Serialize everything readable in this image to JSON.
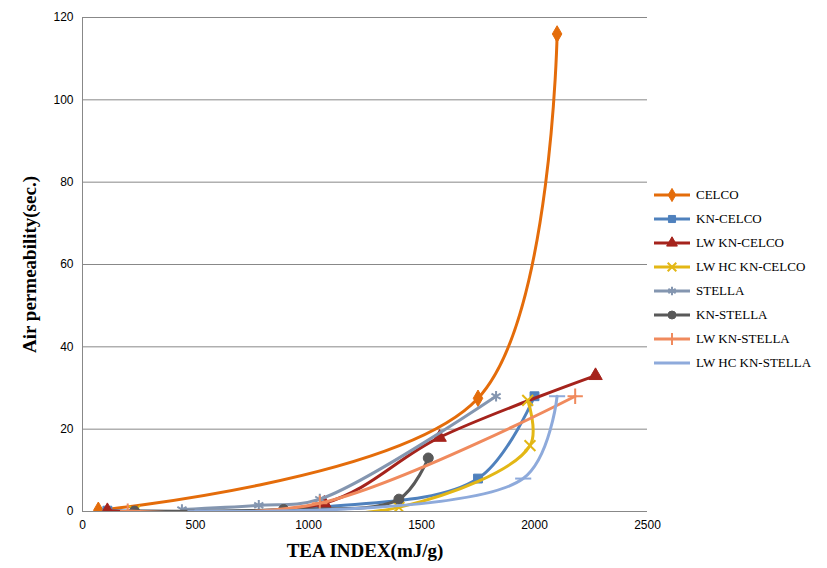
{
  "chart_data": {
    "type": "line",
    "x_label": "TEA INDEX(mJ/g)",
    "y_label": "Air permeability(sec.)",
    "xlim": [
      0,
      2500
    ],
    "xticks": [
      0,
      500,
      1000,
      1500,
      2000,
      2500
    ],
    "ylim": [
      0,
      120
    ],
    "yticks": [
      0,
      20,
      40,
      60,
      80,
      100,
      120
    ],
    "grid": true,
    "legend": "right",
    "series": [
      {
        "name": "CELCO",
        "color": "#e46c0a",
        "marker": "diamond",
        "x": [
          70,
          1750,
          2100
        ],
        "values": [
          0.3,
          27.5,
          116
        ]
      },
      {
        "name": "KN-CELCO",
        "color": "#4f81bd",
        "marker": "square",
        "x": [
          110,
          1050,
          1750,
          2000
        ],
        "values": [
          0.2,
          1,
          8,
          28
        ]
      },
      {
        "name": "LW KN-CELCO",
        "color": "#a5231c",
        "marker": "triangle",
        "x": [
          110,
          1070,
          1580,
          2270
        ],
        "values": [
          0.2,
          2,
          18,
          33
        ]
      },
      {
        "name": "LW HC KN-CELCO",
        "color": "#e3b715",
        "marker": "times",
        "x": [
          230,
          1400,
          1980,
          1970
        ],
        "values": [
          0.1,
          1,
          16,
          27
        ]
      },
      {
        "name": "STELLA",
        "color": "#8496b0",
        "marker": "asterisk",
        "x": [
          440,
          780,
          1050,
          1830
        ],
        "values": [
          0.5,
          1.5,
          3,
          28
        ]
      },
      {
        "name": "KN-STELLA",
        "color": "#595959",
        "marker": "circle",
        "x": [
          230,
          890,
          1400,
          1530
        ],
        "values": [
          0.1,
          0.5,
          3,
          13
        ]
      },
      {
        "name": "LW KN-STELLA",
        "color": "#f08a5d",
        "marker": "plus",
        "x": [
          200,
          1050,
          2180
        ],
        "values": [
          0.1,
          2,
          28
        ]
      },
      {
        "name": "LW HC KN-STELLA",
        "color": "#8eaadb",
        "marker": "dash",
        "x": [
          500,
          1950,
          2100
        ],
        "values": [
          0.1,
          8,
          28
        ]
      }
    ]
  }
}
